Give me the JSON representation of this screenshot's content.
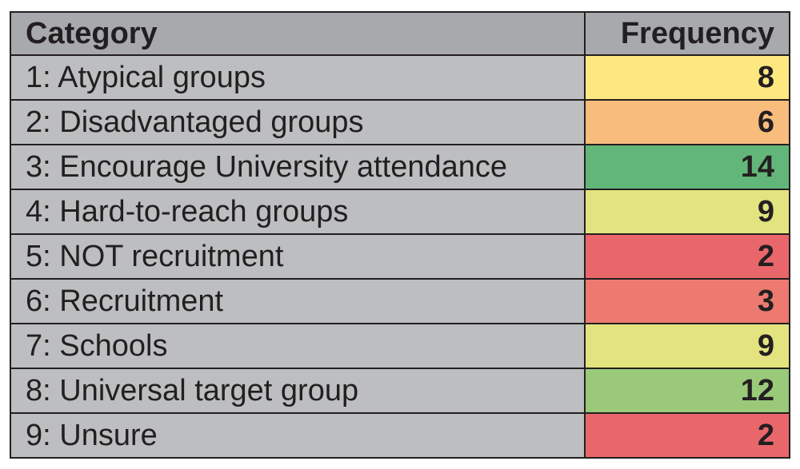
{
  "chart_data": {
    "type": "table",
    "columns": [
      "Category",
      "Frequency"
    ],
    "rows": [
      {
        "category": "1: Atypical groups",
        "frequency": 8,
        "color": "#fde880"
      },
      {
        "category": "2: Disadvantaged groups",
        "frequency": 6,
        "color": "#f8bc7c"
      },
      {
        "category": "3: Encourage University attendance",
        "frequency": 14,
        "color": "#63b679"
      },
      {
        "category": "4: Hard-to-reach groups",
        "frequency": 9,
        "color": "#e3e37f"
      },
      {
        "category": "5: NOT recruitment",
        "frequency": 2,
        "color": "#e9676b"
      },
      {
        "category": "6: Recruitment",
        "frequency": 3,
        "color": "#ec7a70"
      },
      {
        "category": "7: Schools",
        "frequency": 9,
        "color": "#e3e37f"
      },
      {
        "category": "8: Universal target group",
        "frequency": 12,
        "color": "#9ac97a"
      },
      {
        "category": "9: Unsure",
        "frequency": 2,
        "color": "#e9676b"
      }
    ],
    "header_color": "#a7a9ac",
    "category_cell_color": "#bcbec0"
  }
}
